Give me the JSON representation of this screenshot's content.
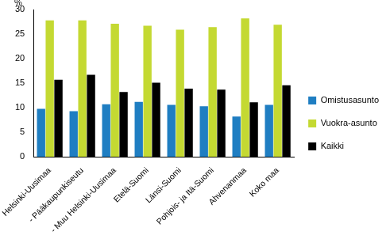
{
  "chart_data": {
    "type": "bar",
    "ylabel": "%",
    "categories": [
      "Helsinki-Uusimaa",
      "- Pääkaupunkiseutu",
      "- Muu Helsinki-Uusimaa",
      "Etelä-Suomi",
      "Länsi-Suomi",
      "Pohjois- ja Itä-Suomi",
      "Ahvenanmaa",
      "Koko maa"
    ],
    "series": [
      {
        "name": "Omistusasunto",
        "color": "#1f7ec2",
        "values": [
          9.8,
          9.3,
          10.7,
          11.2,
          10.6,
          10.3,
          8.2,
          10.6
        ]
      },
      {
        "name": "Vuokra-asunto",
        "color": "#c4d932",
        "values": [
          27.8,
          27.8,
          27.1,
          26.7,
          25.9,
          26.4,
          28.2,
          26.9
        ]
      },
      {
        "name": "Kaikki",
        "color": "#000000",
        "values": [
          15.7,
          16.7,
          13.2,
          15.1,
          13.9,
          13.7,
          11.1,
          14.6
        ]
      }
    ],
    "ylim": [
      0,
      30
    ],
    "yticks": [
      0,
      5,
      10,
      15,
      20,
      25,
      30
    ],
    "grid": false,
    "legend": "right"
  }
}
